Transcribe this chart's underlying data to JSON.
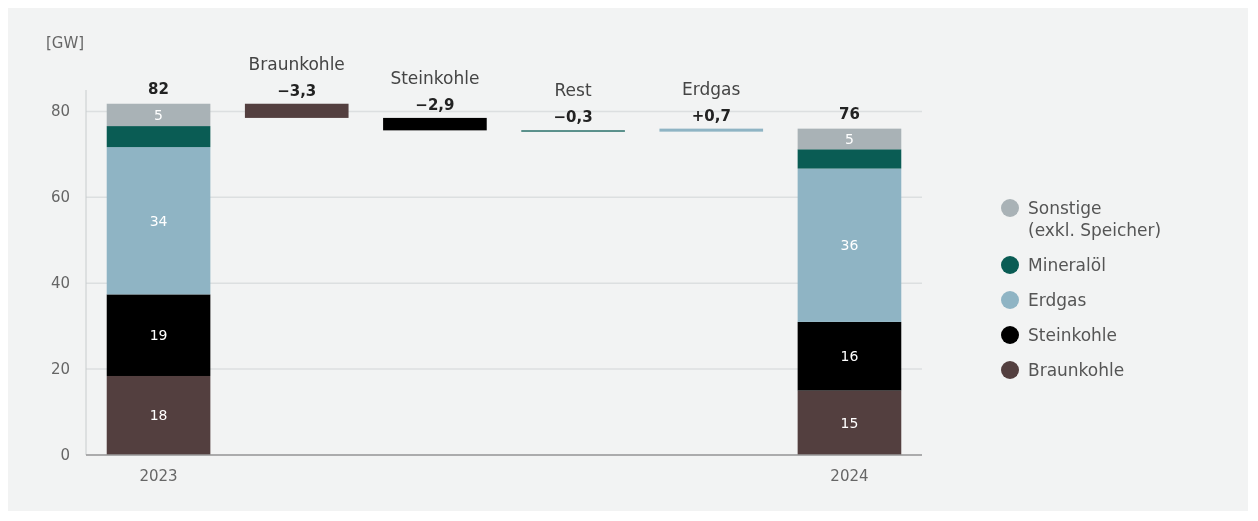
{
  "chart_data": {
    "type": "bar",
    "stacked": true,
    "ylabel": "[GW]",
    "categories": [
      "2023",
      "Braunkohle",
      "Steinkohle",
      "Rest",
      "Erdgas",
      "2024"
    ],
    "series": [
      {
        "name": "Braunkohle",
        "color": "#533f3f",
        "values": [
          18.4,
          null,
          null,
          null,
          null,
          15.0
        ],
        "value_labels": [
          "18",
          null,
          null,
          null,
          null,
          "15"
        ]
      },
      {
        "name": "Steinkohle",
        "color": "#000000",
        "values": [
          19.0,
          null,
          null,
          null,
          null,
          16.0
        ],
        "value_labels": [
          "19",
          null,
          null,
          null,
          null,
          "16"
        ]
      },
      {
        "name": "Erdgas",
        "color": "#8fb4c4",
        "values": [
          34.3,
          null,
          null,
          null,
          null,
          35.7
        ],
        "value_labels": [
          "34",
          null,
          null,
          null,
          null,
          "36"
        ]
      },
      {
        "name": "Mineralöl",
        "color": "#0a5c54",
        "values": [
          4.9,
          null,
          null,
          null,
          null,
          4.5
        ]
      },
      {
        "name": "Sonstige (exkl. Speicher)",
        "color": "#a9b2b6",
        "values": [
          5.2,
          null,
          null,
          null,
          null,
          4.8
        ],
        "value_labels": [
          "5",
          null,
          null,
          null,
          null,
          "5"
        ]
      },
      {
        "colors": [
          null,
          "#533f3f",
          "#000000",
          "#0a5c54",
          "#8fb4c4",
          null
        ],
        "values": [
          null,
          -3.3,
          -2.9,
          -0.3,
          0.7,
          null
        ],
        "base": [
          null,
          81.8,
          78.5,
          75.6,
          75.3,
          null
        ],
        "value_labels": [
          null,
          "−3,3",
          "−2,9",
          "−0,3",
          "+0,7",
          null
        ]
      }
    ],
    "totals": [
      "82",
      null,
      null,
      null,
      null,
      "76"
    ],
    "ylim": [
      0,
      85
    ],
    "yticks": [
      0,
      20,
      40,
      60,
      80
    ],
    "grid": "y",
    "legend": "right"
  }
}
